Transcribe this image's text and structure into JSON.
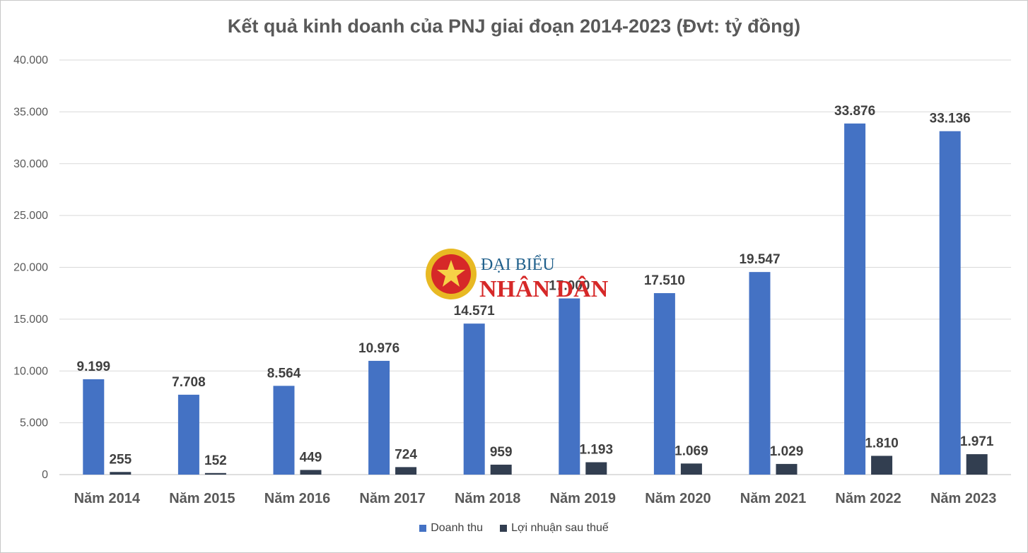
{
  "chart_data": {
    "type": "bar",
    "title": "Kết quả kinh doanh của PNJ giai đoạn 2014-2023 (Đvt: tỷ đồng)",
    "categories": [
      "Năm 2014",
      "Năm 2015",
      "Năm 2016",
      "Năm 2017",
      "Năm 2018",
      "Năm 2019",
      "Năm 2020",
      "Năm 2021",
      "Năm 2022",
      "Năm 2023"
    ],
    "series": [
      {
        "name": "Doanh thu",
        "color": "#4472C4",
        "values": [
          9199,
          7708,
          8564,
          10976,
          14571,
          17000,
          17510,
          19547,
          33876,
          33136
        ],
        "labels": [
          "9.199",
          "7.708",
          "8.564",
          "10.976",
          "14.571",
          "17.000",
          "17.510",
          "19.547",
          "33.876",
          "33.136"
        ]
      },
      {
        "name": "Lợi nhuận sau thuế",
        "color": "#323E50",
        "values": [
          255,
          152,
          449,
          724,
          959,
          1193,
          1069,
          1029,
          1810,
          1971
        ],
        "labels": [
          "255",
          "152",
          "449",
          "724",
          "959",
          "1.193",
          "1.069",
          "1.029",
          "1.810",
          "1.971"
        ]
      }
    ],
    "ylim": [
      0,
      40000
    ],
    "yticks": [
      0,
      5000,
      10000,
      15000,
      20000,
      25000,
      30000,
      35000,
      40000
    ],
    "ytick_labels": [
      "0",
      "5.000",
      "10.000",
      "15.000",
      "20.000",
      "25.000",
      "30.000",
      "35.000",
      "40.000"
    ],
    "grid": true,
    "legend_position": "bottom"
  },
  "watermark": {
    "line1": "ĐẠI BIỂU",
    "line2": "NHÂN DÂN"
  }
}
